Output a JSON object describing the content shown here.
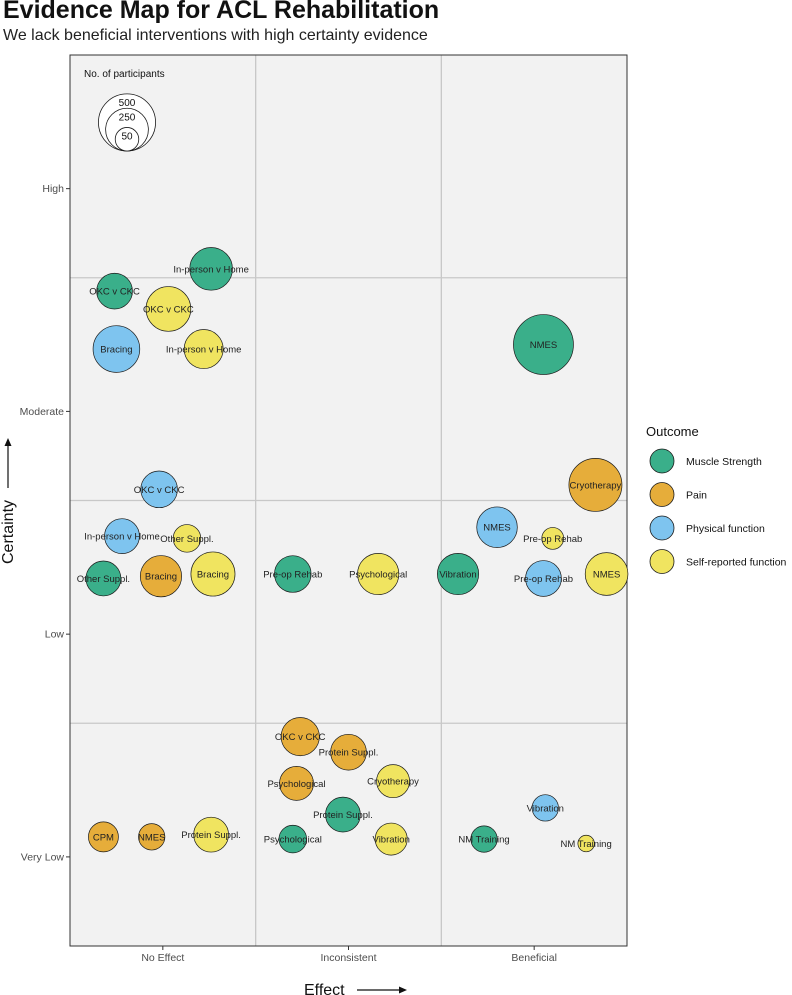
{
  "header": {
    "title": "Evidence Map for ACL Rehabilitation",
    "subtitle": "We lack beneficial interventions with high certainty evidence"
  },
  "colors": {
    "Muscle Strength": "#3AAF8A",
    "Pain": "#E6AD3A",
    "Physical function": "#7EC4EF",
    "Self-reported function": "#F0E460"
  },
  "chart_data": {
    "type": "scatter",
    "xlabel": "Effect",
    "ylabel": "Certainty",
    "x_categories": [
      "No Effect",
      "Inconsistent",
      "Beneficial"
    ],
    "y_categories": [
      "Very Low",
      "Low",
      "Moderate",
      "High"
    ],
    "legend": {
      "title": "Outcome",
      "position": "right",
      "entries": [
        "Muscle Strength",
        "Pain",
        "Physical function",
        "Self-reported function"
      ]
    },
    "size_legend": {
      "title": "No. of participants",
      "position": "top-left",
      "values": [
        500,
        250,
        50
      ]
    },
    "points": [
      {
        "label": "In-person v Home",
        "effect": "No Effect",
        "certainty": "Moderate",
        "outcome": "Muscle Strength",
        "participants": 250,
        "x": 0.76,
        "y": 3.04
      },
      {
        "label": "OKC v CKC",
        "effect": "No Effect",
        "certainty": "Moderate",
        "outcome": "Muscle Strength",
        "participants": 160,
        "x": 0.24,
        "y": 2.94
      },
      {
        "label": "OKC v CKC",
        "effect": "No Effect",
        "certainty": "Moderate",
        "outcome": "Self-reported function",
        "participants": 280,
        "x": 0.53,
        "y": 2.86
      },
      {
        "label": "Bracing",
        "effect": "No Effect",
        "certainty": "Moderate",
        "outcome": "Physical function",
        "participants": 310,
        "x": 0.25,
        "y": 2.68
      },
      {
        "label": "In-person v Home",
        "effect": "No Effect",
        "certainty": "Moderate",
        "outcome": "Self-reported function",
        "participants": 200,
        "x": 0.72,
        "y": 2.68
      },
      {
        "label": "NMES",
        "effect": "Beneficial",
        "certainty": "Moderate",
        "outcome": "Muscle Strength",
        "participants": 560,
        "x": 2.55,
        "y": 2.7
      },
      {
        "label": "Cryotherapy",
        "effect": "Beneficial",
        "certainty": "Low",
        "outcome": "Pain",
        "participants": 420,
        "x": 2.83,
        "y": 2.07
      },
      {
        "label": "OKC v CKC",
        "effect": "No Effect",
        "certainty": "Low",
        "outcome": "Physical function",
        "participants": 170,
        "x": 0.48,
        "y": 2.05
      },
      {
        "label": "NMES",
        "effect": "Beneficial",
        "certainty": "Low",
        "outcome": "Physical function",
        "participants": 220,
        "x": 2.3,
        "y": 1.88
      },
      {
        "label": "In-person v Home",
        "effect": "No Effect",
        "certainty": "Low",
        "outcome": "Physical function",
        "participants": 150,
        "x": 0.28,
        "y": 1.84
      },
      {
        "label": "Other Suppl.",
        "effect": "No Effect",
        "certainty": "Low",
        "outcome": "Self-reported function",
        "participants": 80,
        "x": 0.63,
        "y": 1.83
      },
      {
        "label": "Pre-op Rehab",
        "effect": "Beneficial",
        "certainty": "Low",
        "outcome": "Self-reported function",
        "participants": 40,
        "x": 2.6,
        "y": 1.83
      },
      {
        "label": "Other Suppl.",
        "effect": "No Effect",
        "certainty": "Low",
        "outcome": "Muscle Strength",
        "participants": 150,
        "x": 0.18,
        "y": 1.65
      },
      {
        "label": "Bracing",
        "effect": "No Effect",
        "certainty": "Low",
        "outcome": "Pain",
        "participants": 230,
        "x": 0.49,
        "y": 1.66
      },
      {
        "label": "Bracing",
        "effect": "No Effect",
        "certainty": "Low",
        "outcome": "Self-reported function",
        "participants": 270,
        "x": 0.77,
        "y": 1.67
      },
      {
        "label": "Pre-op Rehab",
        "effect": "Inconsistent",
        "certainty": "Low",
        "outcome": "Muscle Strength",
        "participants": 170,
        "x": 1.2,
        "y": 1.67
      },
      {
        "label": "Psychological",
        "effect": "Inconsistent",
        "certainty": "Low",
        "outcome": "Self-reported function",
        "participants": 230,
        "x": 1.66,
        "y": 1.67
      },
      {
        "label": "Vibration",
        "effect": "Beneficial",
        "certainty": "Low",
        "outcome": "Muscle Strength",
        "participants": 230,
        "x": 2.09,
        "y": 1.67
      },
      {
        "label": "Pre-op Rehab",
        "effect": "Beneficial",
        "certainty": "Low",
        "outcome": "Physical function",
        "participants": 160,
        "x": 2.55,
        "y": 1.65
      },
      {
        "label": "NMES",
        "effect": "Beneficial",
        "certainty": "Low",
        "outcome": "Self-reported function",
        "participants": 250,
        "x": 2.89,
        "y": 1.67
      },
      {
        "label": "OKC v CKC",
        "effect": "Inconsistent",
        "certainty": "Very Low",
        "outcome": "Pain",
        "participants": 190,
        "x": 1.24,
        "y": 0.94
      },
      {
        "label": "Protein Suppl.",
        "effect": "Inconsistent",
        "certainty": "Very Low",
        "outcome": "Pain",
        "participants": 160,
        "x": 1.5,
        "y": 0.87
      },
      {
        "label": "Psychological",
        "effect": "Inconsistent",
        "certainty": "Very Low",
        "outcome": "Pain",
        "participants": 140,
        "x": 1.22,
        "y": 0.73
      },
      {
        "label": "Cryotherapy",
        "effect": "Inconsistent",
        "certainty": "Very Low",
        "outcome": "Self-reported function",
        "participants": 130,
        "x": 1.74,
        "y": 0.74
      },
      {
        "label": "Protein Suppl.",
        "effect": "Inconsistent",
        "certainty": "Very Low",
        "outcome": "Muscle Strength",
        "participants": 150,
        "x": 1.47,
        "y": 0.59
      },
      {
        "label": "Vibration",
        "effect": "Beneficial",
        "certainty": "Very Low",
        "outcome": "Physical function",
        "participants": 70,
        "x": 2.56,
        "y": 0.62
      },
      {
        "label": "CPM",
        "effect": "No Effect",
        "certainty": "Very Low",
        "outcome": "Pain",
        "participants": 100,
        "x": 0.18,
        "y": 0.49
      },
      {
        "label": "NMES",
        "effect": "No Effect",
        "certainty": "Very Low",
        "outcome": "Pain",
        "participants": 70,
        "x": 0.44,
        "y": 0.49
      },
      {
        "label": "Protein Suppl.",
        "effect": "No Effect",
        "certainty": "Very Low",
        "outcome": "Self-reported function",
        "participants": 150,
        "x": 0.76,
        "y": 0.5
      },
      {
        "label": "Psychological",
        "effect": "Inconsistent",
        "certainty": "Very Low",
        "outcome": "Muscle Strength",
        "participants": 80,
        "x": 1.2,
        "y": 0.48
      },
      {
        "label": "Vibration",
        "effect": "Inconsistent",
        "certainty": "Very Low",
        "outcome": "Self-reported function",
        "participants": 120,
        "x": 1.73,
        "y": 0.48
      },
      {
        "label": "NM Training",
        "effect": "Beneficial",
        "certainty": "Very Low",
        "outcome": "Muscle Strength",
        "participants": 70,
        "x": 2.23,
        "y": 0.48
      },
      {
        "label": "NM Training",
        "effect": "Beneficial",
        "certainty": "Very Low",
        "outcome": "Self-reported function",
        "participants": 15,
        "x": 2.78,
        "y": 0.46
      }
    ]
  }
}
